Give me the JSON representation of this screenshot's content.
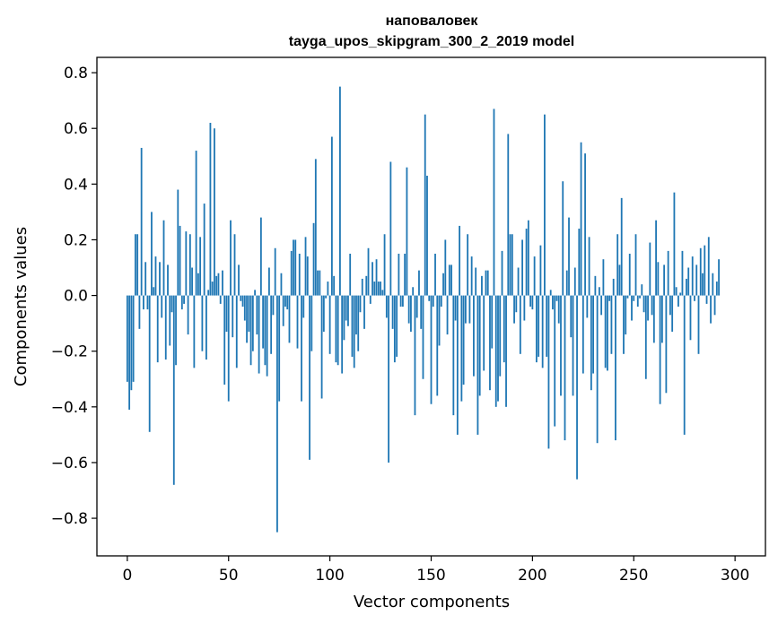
{
  "chart_data": {
    "type": "bar",
    "title": "наповаловек",
    "subtitle": "tayga_upos_skipgram_300_2_2019 model",
    "xlabel": "Vector components",
    "ylabel": "Components values",
    "xlim": [
      -15,
      315
    ],
    "ylim": [
      -0.935,
      0.855
    ],
    "xticks": [
      0,
      50,
      100,
      150,
      200,
      250,
      300
    ],
    "xtick_labels": [
      "0",
      "50",
      "100",
      "150",
      "200",
      "250",
      "300"
    ],
    "yticks": [
      -0.8,
      -0.6,
      -0.4,
      -0.2,
      0.0,
      0.2,
      0.4,
      0.6,
      0.8
    ],
    "ytick_labels": [
      "−0.8",
      "−0.6",
      "−0.4",
      "−0.2",
      "0.0",
      "0.2",
      "0.4",
      "0.6",
      "0.8"
    ],
    "grid": false,
    "legend": "none",
    "bar_color": "#1f77b4",
    "series": [
      {
        "values": [
          -0.31,
          -0.41,
          -0.34,
          -0.31,
          0.22,
          0.22,
          -0.12,
          0.53,
          -0.05,
          0.12,
          -0.05,
          -0.49,
          0.3,
          0.03,
          0.14,
          -0.24,
          0.12,
          -0.08,
          0.27,
          -0.23,
          0.11,
          -0.18,
          -0.06,
          -0.68,
          -0.25,
          0.38,
          0.25,
          -0.05,
          -0.03,
          0.23,
          -0.14,
          0.22,
          0.1,
          -0.26,
          0.52,
          0.08,
          0.21,
          -0.2,
          0.33,
          -0.23,
          0.02,
          0.62,
          0.05,
          0.6,
          0.07,
          0.08,
          -0.03,
          0.09,
          -0.32,
          -0.13,
          -0.38,
          0.27,
          -0.15,
          0.22,
          -0.26,
          0.11,
          -0.02,
          -0.04,
          -0.09,
          -0.17,
          -0.13,
          -0.25,
          -0.2,
          0.02,
          -0.14,
          -0.28,
          0.28,
          -0.19,
          -0.25,
          -0.29,
          0.1,
          -0.21,
          -0.07,
          0.17,
          -0.85,
          -0.38,
          0.08,
          -0.11,
          -0.04,
          -0.05,
          -0.17,
          0.16,
          0.2,
          0.2,
          -0.19,
          0.15,
          -0.38,
          -0.08,
          0.21,
          0.14,
          -0.59,
          -0.2,
          0.26,
          0.49,
          0.09,
          0.09,
          -0.37,
          -0.13,
          -0.01,
          0.05,
          -0.21,
          0.57,
          0.07,
          -0.24,
          -0.25,
          0.75,
          -0.28,
          -0.16,
          -0.09,
          -0.11,
          0.15,
          -0.22,
          -0.26,
          -0.14,
          -0.2,
          -0.06,
          0.06,
          -0.12,
          0.07,
          0.17,
          -0.03,
          0.12,
          0.05,
          0.13,
          0.05,
          0.05,
          0.02,
          0.22,
          -0.08,
          -0.6,
          0.48,
          -0.12,
          -0.24,
          -0.22,
          0.15,
          -0.04,
          -0.04,
          0.15,
          0.46,
          -0.1,
          -0.13,
          0.03,
          -0.43,
          -0.08,
          0.09,
          -0.12,
          -0.3,
          0.65,
          0.43,
          -0.02,
          -0.39,
          -0.04,
          0.15,
          -0.36,
          -0.18,
          -0.04,
          0.08,
          0.2,
          -0.14,
          0.11,
          0.11,
          -0.43,
          -0.09,
          -0.5,
          0.25,
          -0.38,
          -0.32,
          -0.1,
          0.22,
          -0.1,
          0.14,
          -0.29,
          0.1,
          -0.5,
          -0.36,
          0.07,
          -0.27,
          0.09,
          0.09,
          -0.34,
          -0.19,
          0.67,
          -0.4,
          -0.38,
          -0.29,
          0.16,
          -0.24,
          -0.4,
          0.58,
          0.22,
          0.22,
          -0.1,
          -0.06,
          0.1,
          -0.21,
          0.2,
          -0.09,
          0.24,
          0.27,
          -0.04,
          -0.05,
          0.14,
          -0.24,
          -0.22,
          0.18,
          -0.26,
          0.65,
          -0.22,
          -0.55,
          0.02,
          -0.05,
          -0.47,
          -0.02,
          -0.1,
          -0.36,
          0.41,
          -0.52,
          0.09,
          0.28,
          -0.15,
          -0.36,
          0.1,
          -0.66,
          0.24,
          0.55,
          -0.28,
          0.51,
          -0.08,
          0.21,
          -0.34,
          -0.28,
          0.07,
          -0.53,
          0.03,
          -0.07,
          0.13,
          -0.26,
          -0.27,
          -0.02,
          -0.21,
          0.06,
          -0.52,
          0.22,
          0.11,
          0.35,
          -0.21,
          -0.14,
          -0.01,
          0.15,
          -0.09,
          -0.02,
          0.22,
          -0.04,
          -0.01,
          0.04,
          -0.06,
          -0.3,
          -0.09,
          0.19,
          -0.07,
          -0.17,
          0.27,
          0.12,
          -0.39,
          -0.17,
          0.11,
          -0.35,
          0.16,
          -0.07,
          -0.13,
          0.37,
          0.03,
          -0.04,
          0.01,
          0.16,
          -0.5,
          0.06,
          0.1,
          -0.16,
          0.14,
          -0.02,
          0.11,
          -0.21,
          0.17,
          0.08,
          0.18,
          -0.03,
          0.21,
          -0.1,
          0.08,
          -0.07,
          0.05,
          0.13
        ]
      }
    ]
  }
}
